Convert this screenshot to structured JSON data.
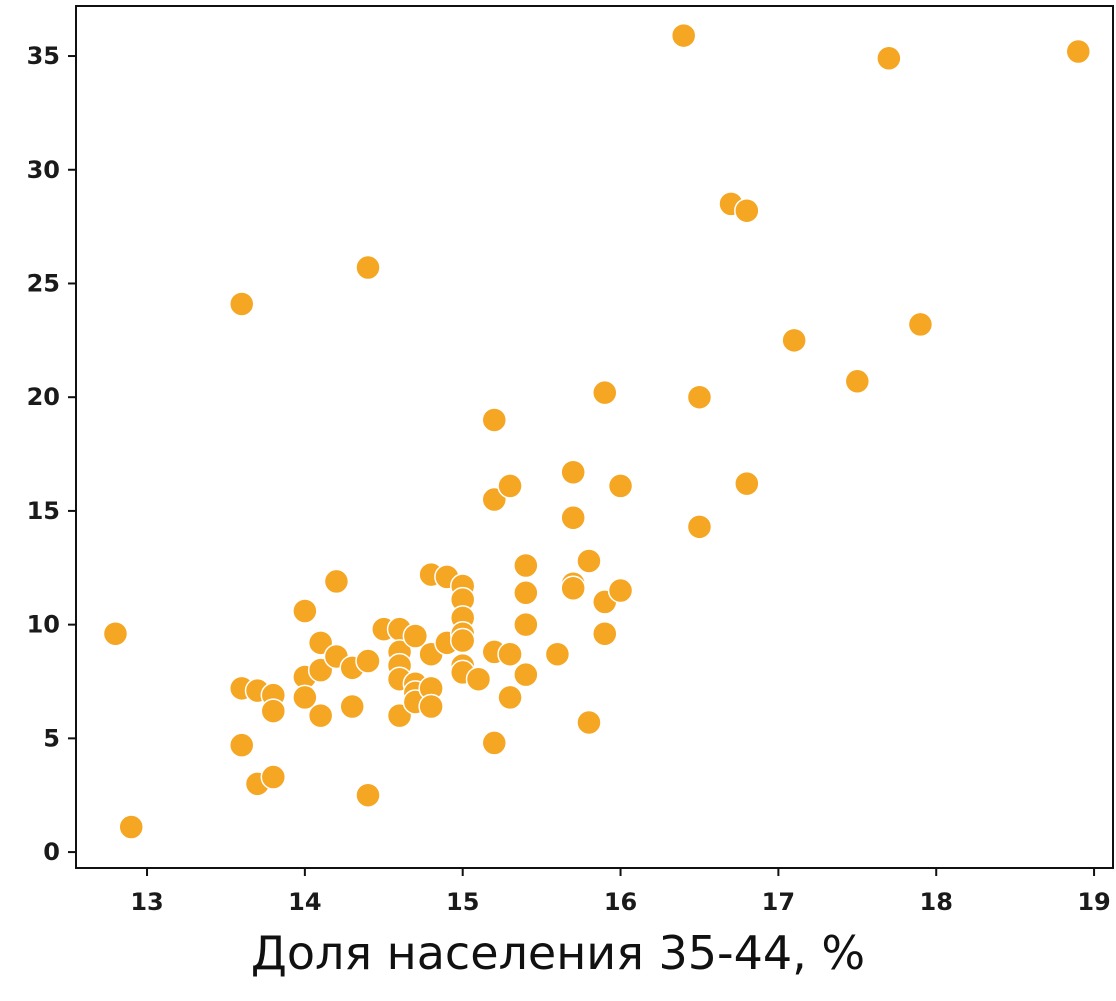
{
  "chart_data": {
    "type": "scatter",
    "title": "",
    "xlabel": "Доля населения 35-44, %",
    "ylabel": "",
    "xlim": [
      12.55,
      19.12
    ],
    "ylim": [
      -0.7,
      37.2
    ],
    "xticks": [
      13,
      14,
      15,
      16,
      17,
      18,
      19
    ],
    "yticks": [
      0,
      5,
      10,
      15,
      20,
      25,
      30,
      35
    ],
    "xtick_labels": [
      "13",
      "14",
      "15",
      "16",
      "17",
      "18",
      "19"
    ],
    "ytick_labels": [
      "0",
      "5",
      "10",
      "15",
      "20",
      "25",
      "30",
      "35"
    ],
    "grid": false,
    "marker_color": "#f5a623",
    "marker_edge_color": "#ffffff",
    "points": [
      {
        "x": 12.8,
        "y": 9.6
      },
      {
        "x": 12.9,
        "y": 1.1
      },
      {
        "x": 13.6,
        "y": 24.1
      },
      {
        "x": 13.6,
        "y": 7.2
      },
      {
        "x": 13.6,
        "y": 4.7
      },
      {
        "x": 13.7,
        "y": 7.1
      },
      {
        "x": 13.7,
        "y": 3.0
      },
      {
        "x": 13.8,
        "y": 6.9
      },
      {
        "x": 13.8,
        "y": 6.2
      },
      {
        "x": 13.8,
        "y": 3.3
      },
      {
        "x": 14.0,
        "y": 10.6
      },
      {
        "x": 14.0,
        "y": 7.7
      },
      {
        "x": 14.0,
        "y": 6.8
      },
      {
        "x": 14.1,
        "y": 9.2
      },
      {
        "x": 14.1,
        "y": 8.0
      },
      {
        "x": 14.1,
        "y": 6.0
      },
      {
        "x": 14.2,
        "y": 11.9
      },
      {
        "x": 14.2,
        "y": 8.6
      },
      {
        "x": 14.3,
        "y": 8.1
      },
      {
        "x": 14.3,
        "y": 6.4
      },
      {
        "x": 14.4,
        "y": 25.7
      },
      {
        "x": 14.4,
        "y": 8.4
      },
      {
        "x": 14.4,
        "y": 2.5
      },
      {
        "x": 14.5,
        "y": 9.8
      },
      {
        "x": 14.6,
        "y": 9.8
      },
      {
        "x": 14.6,
        "y": 8.8
      },
      {
        "x": 14.6,
        "y": 8.2
      },
      {
        "x": 14.6,
        "y": 7.6
      },
      {
        "x": 14.6,
        "y": 6.0
      },
      {
        "x": 14.7,
        "y": 9.5
      },
      {
        "x": 14.7,
        "y": 7.4
      },
      {
        "x": 14.7,
        "y": 7.0
      },
      {
        "x": 14.7,
        "y": 6.6
      },
      {
        "x": 14.8,
        "y": 12.2
      },
      {
        "x": 14.8,
        "y": 8.7
      },
      {
        "x": 14.8,
        "y": 7.2
      },
      {
        "x": 14.8,
        "y": 6.4
      },
      {
        "x": 14.9,
        "y": 12.1
      },
      {
        "x": 14.9,
        "y": 9.2
      },
      {
        "x": 15.0,
        "y": 11.7
      },
      {
        "x": 15.0,
        "y": 11.1
      },
      {
        "x": 15.0,
        "y": 10.3
      },
      {
        "x": 15.0,
        "y": 9.6
      },
      {
        "x": 15.0,
        "y": 9.3
      },
      {
        "x": 15.0,
        "y": 8.2
      },
      {
        "x": 15.0,
        "y": 7.9
      },
      {
        "x": 15.1,
        "y": 7.6
      },
      {
        "x": 15.2,
        "y": 19.0
      },
      {
        "x": 15.2,
        "y": 15.5
      },
      {
        "x": 15.2,
        "y": 8.8
      },
      {
        "x": 15.2,
        "y": 4.8
      },
      {
        "x": 15.3,
        "y": 16.1
      },
      {
        "x": 15.3,
        "y": 8.7
      },
      {
        "x": 15.3,
        "y": 6.8
      },
      {
        "x": 15.4,
        "y": 12.6
      },
      {
        "x": 15.4,
        "y": 11.4
      },
      {
        "x": 15.4,
        "y": 10.0
      },
      {
        "x": 15.4,
        "y": 7.8
      },
      {
        "x": 15.6,
        "y": 8.7
      },
      {
        "x": 15.7,
        "y": 16.7
      },
      {
        "x": 15.7,
        "y": 14.7
      },
      {
        "x": 15.7,
        "y": 11.8
      },
      {
        "x": 15.7,
        "y": 11.6
      },
      {
        "x": 15.8,
        "y": 12.8
      },
      {
        "x": 15.8,
        "y": 5.7
      },
      {
        "x": 15.9,
        "y": 20.2
      },
      {
        "x": 15.9,
        "y": 11.0
      },
      {
        "x": 15.9,
        "y": 9.6
      },
      {
        "x": 16.0,
        "y": 16.1
      },
      {
        "x": 16.0,
        "y": 11.5
      },
      {
        "x": 16.4,
        "y": 35.9
      },
      {
        "x": 16.5,
        "y": 20.0
      },
      {
        "x": 16.5,
        "y": 14.3
      },
      {
        "x": 16.7,
        "y": 28.5
      },
      {
        "x": 16.8,
        "y": 28.2
      },
      {
        "x": 16.8,
        "y": 16.2
      },
      {
        "x": 17.1,
        "y": 22.5
      },
      {
        "x": 17.5,
        "y": 20.7
      },
      {
        "x": 17.7,
        "y": 34.9
      },
      {
        "x": 17.9,
        "y": 23.2
      },
      {
        "x": 18.9,
        "y": 35.2
      }
    ]
  }
}
